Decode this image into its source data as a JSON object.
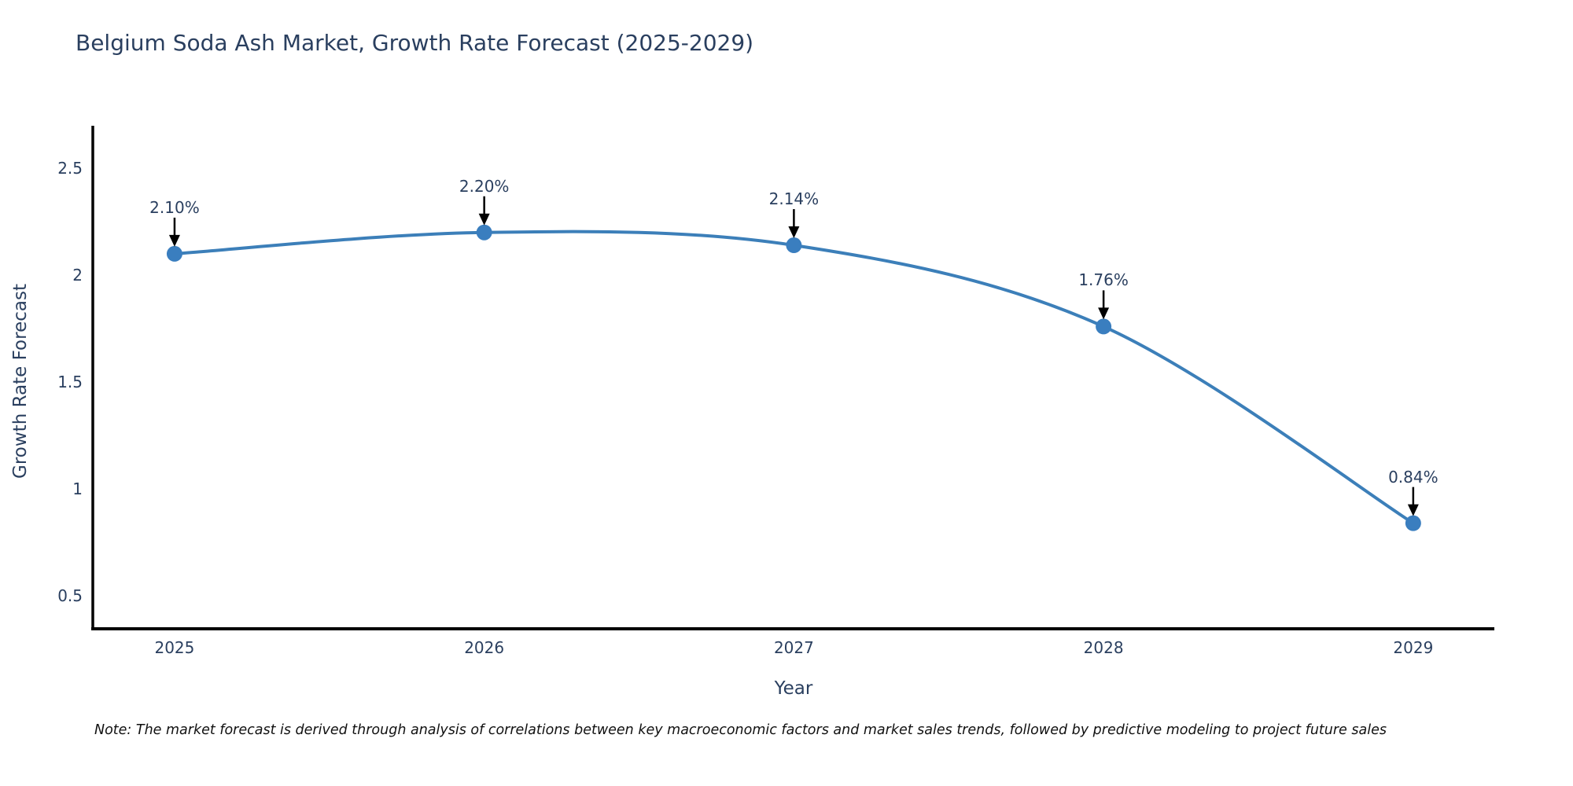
{
  "title": "Belgium Soda Ash Market, Growth Rate Forecast (2025-2029)",
  "note": "Note: The market forecast is derived through analysis of correlations between key macroeconomic factors and market sales trends, followed by predictive modeling to project future sales",
  "colors": {
    "accent_line": "#3c7fb9",
    "marker_fill": "#3a7ebf",
    "text": "#2a3f5f",
    "axis_line": "#000000",
    "arrow": "#000000",
    "background": "#ffffff"
  },
  "chart_data": {
    "type": "line",
    "title": "Belgium Soda Ash Market, Growth Rate Forecast (2025-2029)",
    "xlabel": "Year",
    "ylabel": "Growth Rate Forecast",
    "x": [
      2025,
      2026,
      2027,
      2028,
      2029
    ],
    "values": [
      2.1,
      2.2,
      2.14,
      1.76,
      0.84
    ],
    "point_labels": [
      "2.10%",
      "2.20%",
      "2.14%",
      "1.76%",
      "0.84%"
    ],
    "x_tick_labels": [
      "2025",
      "2026",
      "2027",
      "2028",
      "2029"
    ],
    "y_ticks": [
      0.5,
      1,
      1.5,
      2,
      2.5
    ],
    "y_tick_labels": [
      "0.5",
      "1",
      "1.5",
      "2",
      "2.5"
    ],
    "xlim": [
      2024.736,
      2029.262
    ],
    "ylim": [
      0.346,
      2.699
    ],
    "grid": false,
    "legend": "none",
    "line_shape": "spline",
    "annotations_style": "value-above-with-down-arrow"
  }
}
